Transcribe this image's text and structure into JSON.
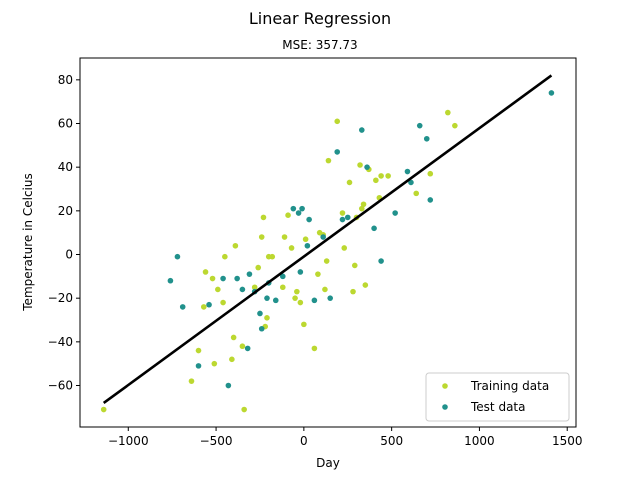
{
  "chart_data": {
    "type": "scatter",
    "title": "Linear Regression",
    "subtitle": "MSE: 357.73",
    "xlabel": "Day",
    "ylabel": "Temperature in Celcius",
    "xlim": [
      -1275,
      1550
    ],
    "ylim": [
      -79,
      90
    ],
    "xticks": [
      -1000,
      -500,
      0,
      500,
      1000,
      1500
    ],
    "xtick_labels": [
      "−1000",
      "−500",
      "0",
      "500",
      "1000",
      "1500"
    ],
    "yticks": [
      -60,
      -40,
      -20,
      0,
      20,
      40,
      60,
      80
    ],
    "ytick_labels": [
      "−60",
      "−40",
      "−20",
      "0",
      "20",
      "40",
      "60",
      "80"
    ],
    "grid": false,
    "legend_location": "lower-right",
    "series": [
      {
        "name": "Training data",
        "color": "#bcd830",
        "marker": "circle",
        "points": [
          [
            -1140,
            -71
          ],
          [
            -640,
            -58
          ],
          [
            -600,
            -44
          ],
          [
            -570,
            -24
          ],
          [
            -560,
            -8
          ],
          [
            -520,
            -11
          ],
          [
            -510,
            -50
          ],
          [
            -490,
            -16
          ],
          [
            -460,
            -22
          ],
          [
            -450,
            -1
          ],
          [
            -410,
            -48
          ],
          [
            -400,
            -38
          ],
          [
            -390,
            4
          ],
          [
            -350,
            -42
          ],
          [
            -340,
            -71
          ],
          [
            -280,
            -15
          ],
          [
            -260,
            -6
          ],
          [
            -240,
            8
          ],
          [
            -230,
            17
          ],
          [
            -220,
            -33
          ],
          [
            -210,
            -29
          ],
          [
            -200,
            -1
          ],
          [
            -180,
            -1
          ],
          [
            -120,
            -15
          ],
          [
            -110,
            8
          ],
          [
            -90,
            18
          ],
          [
            -70,
            3
          ],
          [
            -50,
            -20
          ],
          [
            -40,
            -17
          ],
          [
            -20,
            -22
          ],
          [
            0,
            -32
          ],
          [
            10,
            7
          ],
          [
            60,
            -43
          ],
          [
            80,
            -9
          ],
          [
            90,
            10
          ],
          [
            110,
            9
          ],
          [
            120,
            -16
          ],
          [
            130,
            -3
          ],
          [
            140,
            43
          ],
          [
            190,
            61
          ],
          [
            220,
            19
          ],
          [
            230,
            3
          ],
          [
            260,
            33
          ],
          [
            280,
            -17
          ],
          [
            290,
            -5
          ],
          [
            300,
            17
          ],
          [
            320,
            41
          ],
          [
            330,
            21
          ],
          [
            340,
            23
          ],
          [
            350,
            -14
          ],
          [
            370,
            39
          ],
          [
            410,
            34
          ],
          [
            430,
            26
          ],
          [
            440,
            36
          ],
          [
            480,
            36
          ],
          [
            640,
            28
          ],
          [
            720,
            37
          ],
          [
            820,
            65
          ],
          [
            860,
            59
          ]
        ]
      },
      {
        "name": "Test data",
        "color": "#21918c",
        "marker": "circle",
        "points": [
          [
            -760,
            -12
          ],
          [
            -720,
            -1
          ],
          [
            -690,
            -24
          ],
          [
            -600,
            -51
          ],
          [
            -540,
            -23
          ],
          [
            -460,
            -11
          ],
          [
            -430,
            -60
          ],
          [
            -380,
            -11
          ],
          [
            -350,
            -16
          ],
          [
            -320,
            -43
          ],
          [
            -310,
            -9
          ],
          [
            -280,
            -17
          ],
          [
            -250,
            -27
          ],
          [
            -240,
            -34
          ],
          [
            -210,
            -20
          ],
          [
            -200,
            -13
          ],
          [
            -160,
            -21
          ],
          [
            -120,
            -10
          ],
          [
            -60,
            21
          ],
          [
            -30,
            19
          ],
          [
            -20,
            -8
          ],
          [
            -10,
            21
          ],
          [
            20,
            4
          ],
          [
            30,
            16
          ],
          [
            60,
            -21
          ],
          [
            110,
            8
          ],
          [
            150,
            -20
          ],
          [
            190,
            47
          ],
          [
            220,
            16
          ],
          [
            250,
            17
          ],
          [
            330,
            57
          ],
          [
            360,
            40
          ],
          [
            400,
            12
          ],
          [
            440,
            -3
          ],
          [
            520,
            19
          ],
          [
            590,
            38
          ],
          [
            610,
            33
          ],
          [
            660,
            59
          ],
          [
            700,
            53
          ],
          [
            720,
            25
          ],
          [
            1410,
            74
          ]
        ]
      }
    ],
    "regression_line": {
      "name": "fit",
      "color": "#000000",
      "x": [
        -1140,
        1410
      ],
      "y": [
        -68,
        82
      ]
    }
  }
}
